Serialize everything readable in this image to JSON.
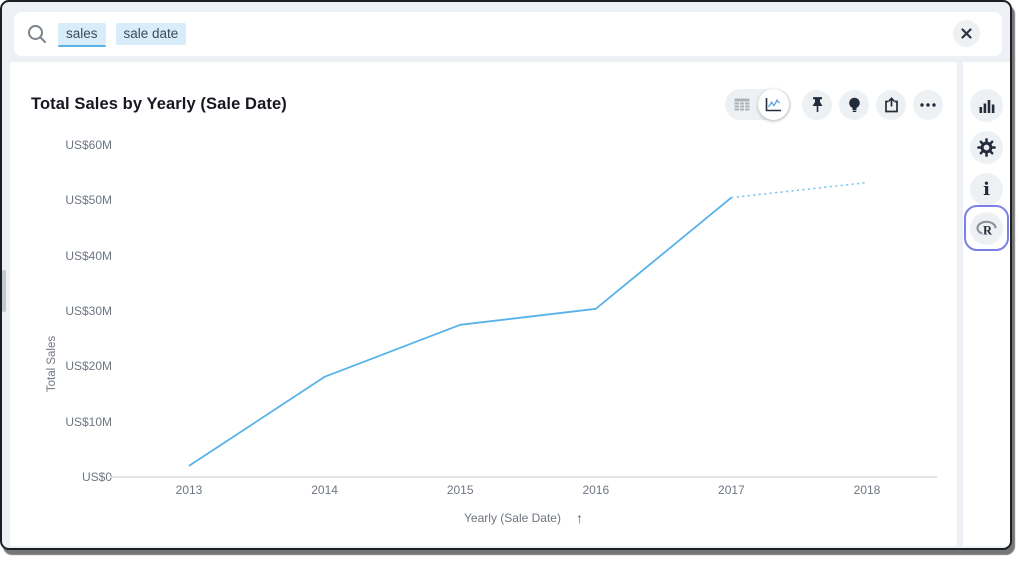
{
  "search": {
    "tokens": [
      {
        "text": "sales",
        "active": true
      },
      {
        "text": "sale date",
        "active": false
      }
    ]
  },
  "answer": {
    "title": "Total Sales by Yearly (Sale Date)",
    "toolbar": {
      "display_modes": [
        "table",
        "chart"
      ],
      "selected_mode": "chart",
      "actions": [
        "pin",
        "spotiq-insights",
        "share",
        "more-options"
      ]
    }
  },
  "sidebar": {
    "items": [
      "change-visualization",
      "chart-configure",
      "details",
      "r-analysis"
    ],
    "highlighted_item": "r-analysis"
  },
  "chart_data": {
    "type": "line",
    "title": "Total Sales by Yearly (Sale Date)",
    "xlabel": "Yearly (Sale Date)",
    "ylabel": "Total Sales",
    "categories": [
      "2013",
      "2014",
      "2015",
      "2016",
      "2017",
      "2018"
    ],
    "values_million_usd": [
      2.0,
      18.1,
      27.5,
      30.4,
      50.5,
      53.2
    ],
    "unit": "US$M",
    "ylim": [
      0,
      60
    ],
    "y_ticks": [
      {
        "label": "US$60M",
        "value": 60
      },
      {
        "label": "US$50M",
        "value": 50
      },
      {
        "label": "US$40M",
        "value": 40
      },
      {
        "label": "US$30M",
        "value": 30
      },
      {
        "label": "US$20M",
        "value": 20
      },
      {
        "label": "US$10M",
        "value": 10
      },
      {
        "label": "US$0",
        "value": 0
      }
    ],
    "line_color": "#57b3e8",
    "dotted_segment_color": "#79c3ee",
    "dotted_last_segment": true,
    "grid": "off",
    "legend": "none",
    "sort_arrow": "↑"
  },
  "colors": {
    "accent_blue": "#57b3e8",
    "token_bg": "#d9ecfa",
    "icon_dark": "#222c3c",
    "highlight_ring": "#7b80e4",
    "panel_gap": "#edf1f5"
  }
}
